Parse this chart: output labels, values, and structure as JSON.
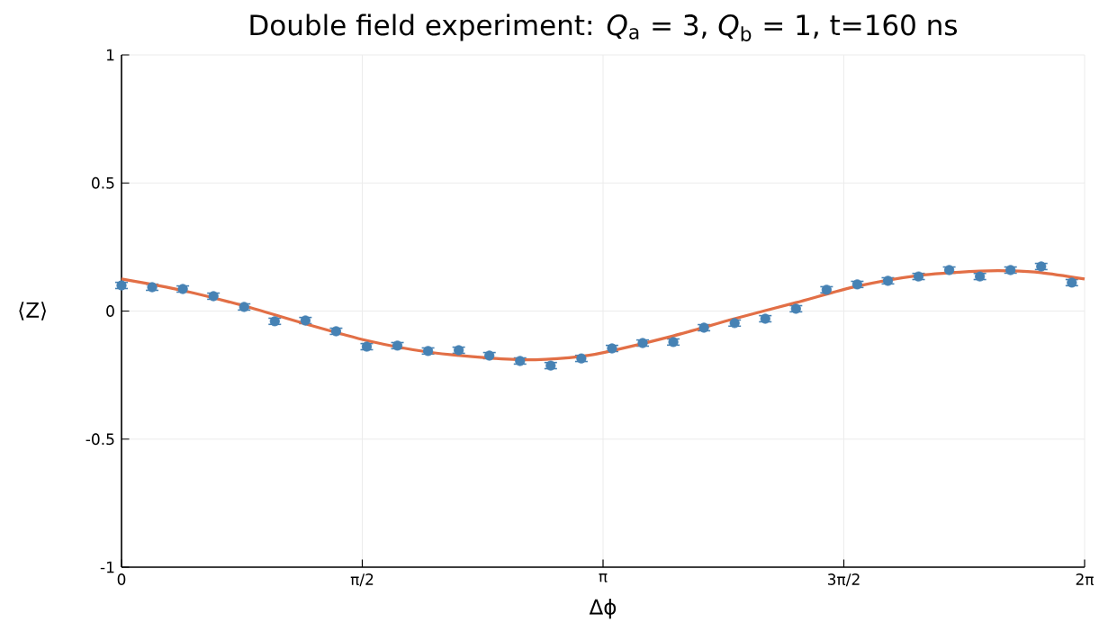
{
  "chart_data": {
    "type": "scatter",
    "title": "Double field experiment: *Q*$_{a}$ = 3, *Q*$_{b}$ = 1, t=160 ns",
    "xlabel": "Δϕ",
    "ylabel": "⟨Z⟩",
    "xlim": [
      0,
      6.283185
    ],
    "xticks": [
      0,
      {
        "value": 1.570796,
        "label": "π/2"
      },
      {
        "value": 3.141593,
        "label": "π"
      },
      {
        "value": 4.712389,
        "label": "3π/2"
      },
      {
        "value": 6.283185,
        "label": "2π"
      }
    ],
    "ylim": [
      -1,
      1
    ],
    "yticks": [
      -1,
      -0.5,
      0,
      0.5,
      1
    ],
    "grid": true,
    "series": [
      {
        "color": "#4682b4",
        "marker": "circle",
        "x": [
          0,
          0.2,
          0.4,
          0.6,
          0.8,
          1.0,
          1.2,
          1.4,
          1.6,
          1.8,
          2.0,
          2.2,
          2.4,
          2.6,
          2.8,
          3.0,
          3.2,
          3.4,
          3.6,
          3.8,
          4.0,
          4.2,
          4.4,
          4.6,
          4.8,
          5.0,
          5.2,
          5.4,
          5.6,
          5.8,
          6.0,
          6.2
        ],
        "values": [
          0.1,
          0.093,
          0.086,
          0.058,
          0.016,
          -0.04,
          -0.037,
          -0.079,
          -0.139,
          -0.135,
          -0.156,
          -0.153,
          -0.174,
          -0.195,
          -0.213,
          -0.185,
          -0.146,
          -0.125,
          -0.121,
          -0.065,
          -0.047,
          -0.03,
          0.009,
          0.083,
          0.104,
          0.118,
          0.135,
          0.16,
          0.135,
          0.16,
          0.174,
          0.111
        ],
        "errors": [
          0.012,
          0.012,
          0.012,
          0.012,
          0.012,
          0.012,
          0.012,
          0.012,
          0.012,
          0.012,
          0.012,
          0.012,
          0.012,
          0.012,
          0.012,
          0.012,
          0.012,
          0.012,
          0.012,
          0.012,
          0.012,
          0.012,
          0.012,
          0.012,
          0.012,
          0.012,
          0.012,
          0.012,
          0.012,
          0.012,
          0.012,
          0.012
        ]
      },
      {
        "type": "line",
        "color": "#e26f46",
        "marker": "none",
        "line_style": "solid",
        "x": [
          0,
          0.4,
          0.8,
          1.2,
          1.6,
          2.0,
          2.4,
          2.7,
          3.0,
          3.2,
          3.6,
          4.0,
          4.4,
          4.8,
          5.2,
          5.6,
          5.8,
          6.0,
          6.283185
        ],
        "values": [
          0.125,
          0.08,
          0.02,
          -0.05,
          -0.115,
          -0.16,
          -0.183,
          -0.19,
          -0.177,
          -0.155,
          -0.097,
          -0.03,
          0.033,
          0.097,
          0.139,
          0.156,
          0.157,
          0.15,
          0.125
        ]
      }
    ]
  }
}
